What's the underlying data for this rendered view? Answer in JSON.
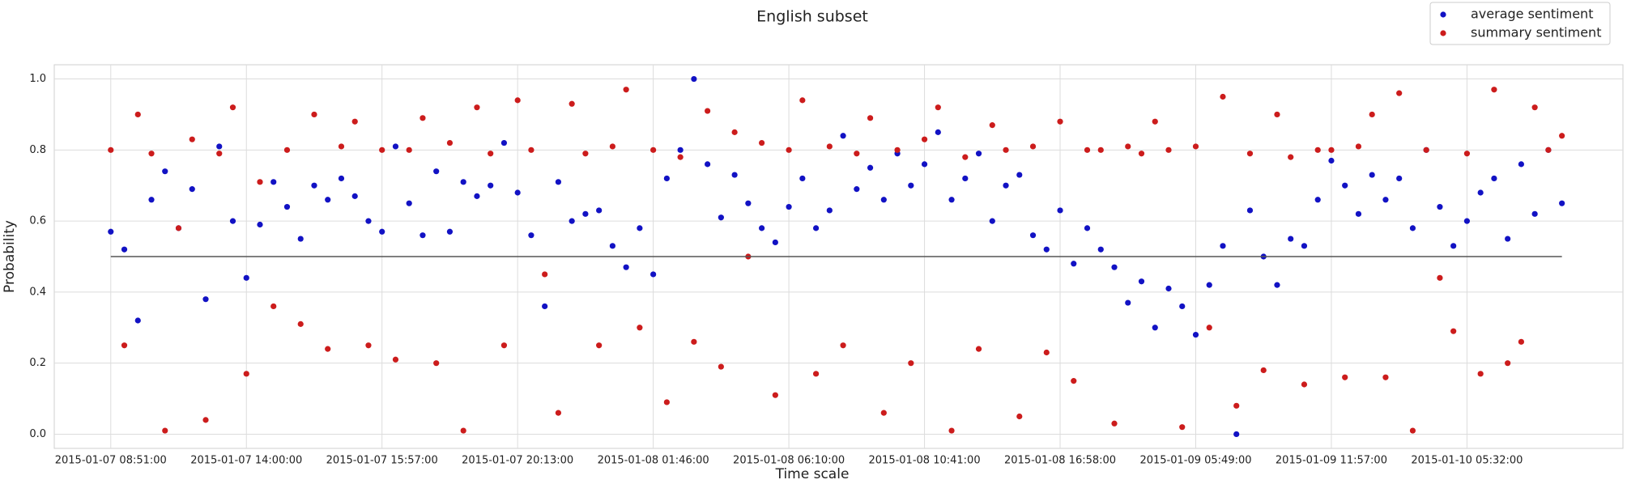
{
  "chart_data": {
    "type": "scatter",
    "title": "English subset",
    "x_label": "Time scale",
    "y_label": "Probability",
    "x": [
      0,
      6,
      12,
      18,
      24,
      30,
      36,
      42,
      48,
      54,
      60,
      66,
      72,
      78,
      84,
      90,
      96,
      102,
      108,
      114,
      120,
      126,
      132,
      138,
      144,
      150,
      156,
      162,
      168,
      174,
      180,
      186,
      192,
      198,
      204,
      210,
      216,
      222,
      228,
      234,
      240,
      246,
      252,
      258,
      264,
      270,
      276,
      282,
      288,
      294,
      300,
      306,
      312,
      318,
      324,
      330,
      336,
      342,
      348,
      354,
      360,
      366,
      372,
      378,
      384,
      390,
      396,
      402,
      408,
      414,
      420,
      426,
      432,
      438,
      444,
      450,
      456,
      462,
      468,
      474,
      480,
      486,
      492,
      498,
      504,
      510,
      516,
      522,
      528,
      534,
      540,
      546,
      552,
      558,
      564,
      570,
      576,
      582,
      588,
      594,
      600,
      606,
      612,
      618,
      624,
      630,
      636,
      642
    ],
    "series": [
      {
        "name": "average sentiment",
        "color": "#1212c4",
        "values": [
          0.57,
          0.52,
          0.32,
          0.66,
          0.74,
          0.58,
          0.69,
          0.38,
          0.81,
          0.6,
          0.44,
          0.59,
          0.71,
          0.64,
          0.55,
          0.7,
          0.66,
          0.72,
          0.67,
          0.6,
          0.57,
          0.81,
          0.65,
          0.56,
          0.74,
          0.57,
          0.71,
          0.67,
          0.7,
          0.82,
          0.68,
          0.56,
          0.36,
          0.71,
          0.6,
          0.62,
          0.63,
          0.53,
          0.47,
          0.58,
          0.45,
          0.72,
          0.8,
          1.0,
          0.76,
          0.61,
          0.73,
          0.65,
          0.58,
          0.54,
          0.64,
          0.72,
          0.58,
          0.63,
          0.84,
          0.69,
          0.75,
          0.66,
          0.79,
          0.7,
          0.76,
          0.85,
          0.66,
          0.72,
          0.79,
          0.6,
          0.7,
          0.73,
          0.56,
          0.52,
          0.63,
          0.48,
          0.58,
          0.52,
          0.47,
          0.37,
          0.43,
          0.3,
          0.41,
          0.36,
          0.28,
          0.42,
          0.53,
          0.0,
          0.63,
          0.5,
          0.42,
          0.55,
          0.53,
          0.66,
          0.77,
          0.7,
          0.62,
          0.73,
          0.66,
          0.72,
          0.58,
          0.8,
          0.64,
          0.53,
          0.6,
          0.68,
          0.72,
          0.55,
          0.76,
          0.62,
          0.8,
          0.65
        ]
      },
      {
        "name": "summary sentiment",
        "color": "#cc1c1c",
        "values": [
          0.8,
          0.25,
          0.9,
          0.79,
          0.01,
          0.58,
          0.83,
          0.04,
          0.79,
          0.92,
          0.17,
          0.71,
          0.36,
          0.8,
          0.31,
          0.9,
          0.24,
          0.81,
          0.88,
          0.25,
          0.8,
          0.21,
          0.8,
          0.89,
          0.2,
          0.82,
          0.01,
          0.92,
          0.79,
          0.25,
          0.94,
          0.8,
          0.45,
          0.06,
          0.93,
          0.79,
          0.25,
          0.81,
          0.97,
          0.3,
          0.8,
          0.09,
          0.78,
          0.26,
          0.91,
          0.19,
          0.85,
          0.5,
          0.82,
          0.11,
          0.8,
          0.94,
          0.17,
          0.81,
          0.25,
          0.79,
          0.89,
          0.06,
          0.8,
          0.2,
          0.83,
          0.92,
          0.01,
          0.78,
          0.24,
          0.87,
          0.8,
          0.05,
          0.81,
          0.23,
          0.88,
          0.15,
          0.8,
          0.8,
          0.03,
          0.81,
          0.79,
          0.88,
          0.8,
          0.02,
          0.81,
          0.3,
          0.95,
          0.08,
          0.79,
          0.18,
          0.9,
          0.78,
          0.14,
          0.8,
          0.8,
          0.16,
          0.81,
          0.9,
          0.16,
          0.96,
          0.01,
          0.8,
          0.44,
          0.29,
          0.79,
          0.17,
          0.97,
          0.2,
          0.26,
          0.92,
          0.8,
          0.84
        ]
      }
    ],
    "hline": 0.5,
    "xlim": [
      -25,
      669
    ],
    "ylim": [
      -0.04,
      1.04
    ],
    "xticks": [
      {
        "value": 0,
        "label": "2015-01-07 08:51:00"
      },
      {
        "value": 60,
        "label": "2015-01-07 14:00:00"
      },
      {
        "value": 120,
        "label": "2015-01-07 15:57:00"
      },
      {
        "value": 180,
        "label": "2015-01-07 20:13:00"
      },
      {
        "value": 240,
        "label": "2015-01-08 01:46:00"
      },
      {
        "value": 300,
        "label": "2015-01-08 06:10:00"
      },
      {
        "value": 360,
        "label": "2015-01-08 10:41:00"
      },
      {
        "value": 420,
        "label": "2015-01-08 16:58:00"
      },
      {
        "value": 480,
        "label": "2015-01-09 05:49:00"
      },
      {
        "value": 540,
        "label": "2015-01-09 11:57:00"
      },
      {
        "value": 600,
        "label": "2015-01-10 05:32:00"
      }
    ],
    "yticks": [
      {
        "value": 0,
        "label": "0.0"
      },
      0.2,
      0.4,
      0.6,
      0.8,
      {
        "value": 1,
        "label": "1.0"
      }
    ],
    "grid": true,
    "legend": "upper right"
  }
}
